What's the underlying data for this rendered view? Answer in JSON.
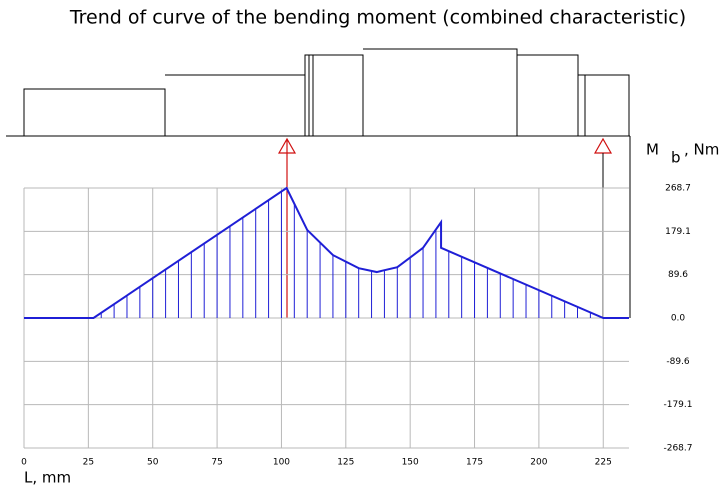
{
  "chart_data": {
    "type": "line",
    "title": "Trend of curve of the bending moment (combined characteristic)",
    "x_label": "L, mm",
    "y_label": "M",
    "y_label_sub": "b",
    "y_label_unit": ", Nm",
    "x": [
      0,
      27,
      102,
      110,
      120,
      130,
      137,
      145,
      155,
      162,
      162,
      225,
      235
    ],
    "series": [
      {
        "color": "#1f1fd6",
        "values": [
          0,
          0,
          268.7,
          182,
          130,
          103,
          95,
          105,
          145,
          198,
          145,
          0,
          0
        ]
      }
    ],
    "xlim": [
      0,
      235
    ],
    "ylim": [
      -268.7,
      268.7
    ],
    "xticks": [
      0,
      25,
      50,
      75,
      100,
      125,
      150,
      175,
      200,
      225
    ],
    "yticks": [
      268.7,
      179.1,
      89.6,
      {
        "value": 0,
        "label": "0.0"
      },
      -89.6,
      -179.1,
      -268.7
    ],
    "grid": true
  }
}
